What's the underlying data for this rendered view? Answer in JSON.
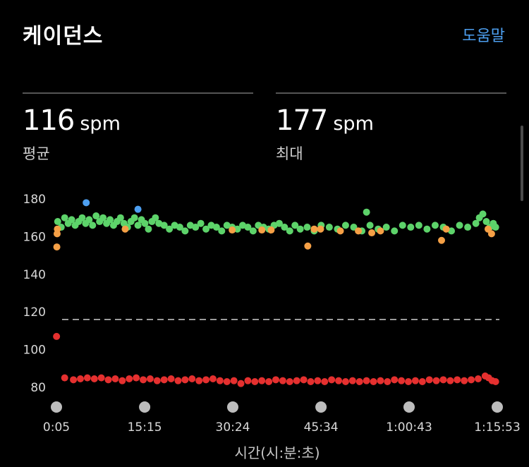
{
  "header": {
    "title": "케이던스",
    "help_label": "도움말"
  },
  "stats": [
    {
      "value": "116",
      "unit": "spm",
      "label": "평균"
    },
    {
      "value": "177",
      "unit": "spm",
      "label": "최대"
    }
  ],
  "colors": {
    "accent": "#4d9ff0",
    "green": "#5dd36a",
    "orange": "#f5a046",
    "red": "#e5302f",
    "blue": "#4d9ff0",
    "avg_line": "#cccccc"
  },
  "chart_data": {
    "type": "scatter",
    "ylim": [
      75,
      186
    ],
    "yticks": [
      180,
      160,
      140,
      120,
      100,
      80
    ],
    "xlim": [
      0.08,
      75.88
    ],
    "xticks": [
      {
        "label": "0:05",
        "value": 0.08
      },
      {
        "label": "15:15",
        "value": 15.25
      },
      {
        "label": "30:24",
        "value": 30.4
      },
      {
        "label": "45:34",
        "value": 45.57
      },
      {
        "label": "1:00:43",
        "value": 60.72
      },
      {
        "label": "1:15:53",
        "value": 75.88
      }
    ],
    "xlabel": "시간(시:분:초)",
    "average": 116,
    "band_1": {
      "color_key": "green",
      "points": [
        [
          0.3,
          168
        ],
        [
          0.9,
          165
        ],
        [
          1.5,
          170
        ],
        [
          2.1,
          167
        ],
        [
          2.7,
          169
        ],
        [
          3.3,
          166
        ],
        [
          3.9,
          168
        ],
        [
          4.5,
          170
        ],
        [
          5.1,
          167
        ],
        [
          5.7,
          169
        ],
        [
          6.3,
          166
        ],
        [
          6.9,
          171
        ],
        [
          7.5,
          168
        ],
        [
          8.1,
          170
        ],
        [
          8.7,
          167
        ],
        [
          9.3,
          169
        ],
        [
          9.9,
          166
        ],
        [
          10.5,
          168
        ],
        [
          11.1,
          170
        ],
        [
          11.7,
          167
        ],
        [
          12.3,
          165
        ],
        [
          12.9,
          168
        ],
        [
          13.5,
          170
        ],
        [
          14.1,
          166
        ],
        [
          14.7,
          169
        ],
        [
          15.3,
          167
        ],
        [
          15.9,
          164
        ],
        [
          16.5,
          168
        ],
        [
          17.1,
          170
        ],
        [
          17.7,
          167
        ],
        [
          18.6,
          166
        ],
        [
          19.5,
          164
        ],
        [
          20.4,
          166
        ],
        [
          21.3,
          165
        ],
        [
          22.2,
          163
        ],
        [
          23.1,
          166
        ],
        [
          24,
          165
        ],
        [
          24.9,
          167
        ],
        [
          25.8,
          164
        ],
        [
          26.7,
          166
        ],
        [
          27.6,
          165
        ],
        [
          28.5,
          163
        ],
        [
          29.4,
          166
        ],
        [
          30.3,
          165
        ],
        [
          31.2,
          164
        ],
        [
          32.1,
          166
        ],
        [
          33,
          165
        ],
        [
          33.9,
          163
        ],
        [
          34.8,
          166
        ],
        [
          35.7,
          165
        ],
        [
          36.6,
          164
        ],
        [
          37.5,
          166
        ],
        [
          38.4,
          167
        ],
        [
          39.3,
          165
        ],
        [
          40.2,
          163
        ],
        [
          41.1,
          166
        ],
        [
          42,
          164
        ],
        [
          43.2,
          165
        ],
        [
          44.4,
          163
        ],
        [
          45.6,
          166
        ],
        [
          47,
          165
        ],
        [
          48.4,
          164
        ],
        [
          49.8,
          166
        ],
        [
          51.2,
          165
        ],
        [
          52.6,
          163
        ],
        [
          54,
          166
        ],
        [
          55.4,
          164
        ],
        [
          56.8,
          165
        ],
        [
          58.2,
          163
        ],
        [
          59.6,
          166
        ],
        [
          61,
          165
        ],
        [
          62.4,
          166
        ],
        [
          63.8,
          164
        ],
        [
          65.2,
          166
        ],
        [
          66.6,
          165
        ],
        [
          68,
          163
        ],
        [
          69.4,
          166
        ],
        [
          70.8,
          165
        ],
        [
          72.2,
          167
        ],
        [
          72.8,
          170
        ],
        [
          73.4,
          172
        ],
        [
          74,
          168
        ],
        [
          74.6,
          165
        ],
        [
          75.2,
          167
        ],
        [
          75.6,
          165
        ],
        [
          53.4,
          173
        ]
      ]
    },
    "band_2": {
      "color_key": "orange",
      "points": [
        [
          0.15,
          154.5
        ],
        [
          0.2,
          161.5
        ],
        [
          0.25,
          164
        ],
        [
          11.9,
          164
        ],
        [
          30.3,
          163.5
        ],
        [
          35.4,
          163.5
        ],
        [
          37,
          163.5
        ],
        [
          43.3,
          155
        ],
        [
          44.4,
          164
        ],
        [
          45.5,
          164
        ],
        [
          48.9,
          163
        ],
        [
          52,
          163
        ],
        [
          54.3,
          162
        ],
        [
          55.8,
          163
        ],
        [
          66.3,
          158
        ],
        [
          67.1,
          164
        ],
        [
          74.3,
          164
        ],
        [
          74.9,
          161.5
        ]
      ]
    },
    "band_3": {
      "color_key": "blue",
      "points": [
        [
          5.2,
          178
        ],
        [
          14.1,
          174.5
        ]
      ]
    },
    "band_4": {
      "color_key": "red",
      "points": [
        [
          0.1,
          107
        ],
        [
          1.5,
          85
        ],
        [
          3,
          84
        ],
        [
          4.2,
          84.5
        ],
        [
          5.4,
          85
        ],
        [
          6.6,
          84.5
        ],
        [
          7.8,
          85
        ],
        [
          9,
          84
        ],
        [
          10.2,
          84.5
        ],
        [
          11.4,
          83.5
        ],
        [
          12.6,
          84.5
        ],
        [
          13.8,
          85
        ],
        [
          15,
          84
        ],
        [
          16.2,
          84.5
        ],
        [
          17.4,
          83.5
        ],
        [
          18.6,
          84
        ],
        [
          19.8,
          84.5
        ],
        [
          21,
          83.5
        ],
        [
          22.2,
          84
        ],
        [
          23.4,
          84.5
        ],
        [
          24.6,
          83.5
        ],
        [
          25.8,
          84
        ],
        [
          27,
          84.5
        ],
        [
          28.2,
          83.5
        ],
        [
          29.4,
          83
        ],
        [
          30.6,
          83.5
        ],
        [
          31.8,
          82
        ],
        [
          33,
          83.5
        ],
        [
          34.2,
          83
        ],
        [
          35.4,
          83.5
        ],
        [
          36.6,
          83
        ],
        [
          37.8,
          84
        ],
        [
          39,
          83.5
        ],
        [
          40.2,
          83
        ],
        [
          41.4,
          83.5
        ],
        [
          42.6,
          84
        ],
        [
          43.8,
          83
        ],
        [
          45,
          83.5
        ],
        [
          46.2,
          83
        ],
        [
          47.4,
          84
        ],
        [
          48.6,
          83.5
        ],
        [
          49.8,
          83
        ],
        [
          51,
          83.5
        ],
        [
          52.2,
          83
        ],
        [
          53.4,
          83.5
        ],
        [
          54.6,
          83
        ],
        [
          55.8,
          83.5
        ],
        [
          57,
          83
        ],
        [
          58.2,
          84
        ],
        [
          59.4,
          83.5
        ],
        [
          60.6,
          83
        ],
        [
          61.8,
          83.5
        ],
        [
          63,
          83
        ],
        [
          64.2,
          84
        ],
        [
          65.4,
          83.5
        ],
        [
          66.6,
          84
        ],
        [
          67.8,
          83.5
        ],
        [
          69,
          84
        ],
        [
          70.2,
          83.5
        ],
        [
          71.4,
          84
        ],
        [
          72.6,
          84.5
        ],
        [
          73.8,
          86
        ],
        [
          74.4,
          85
        ],
        [
          75,
          83.5
        ],
        [
          75.6,
          83
        ]
      ]
    }
  }
}
